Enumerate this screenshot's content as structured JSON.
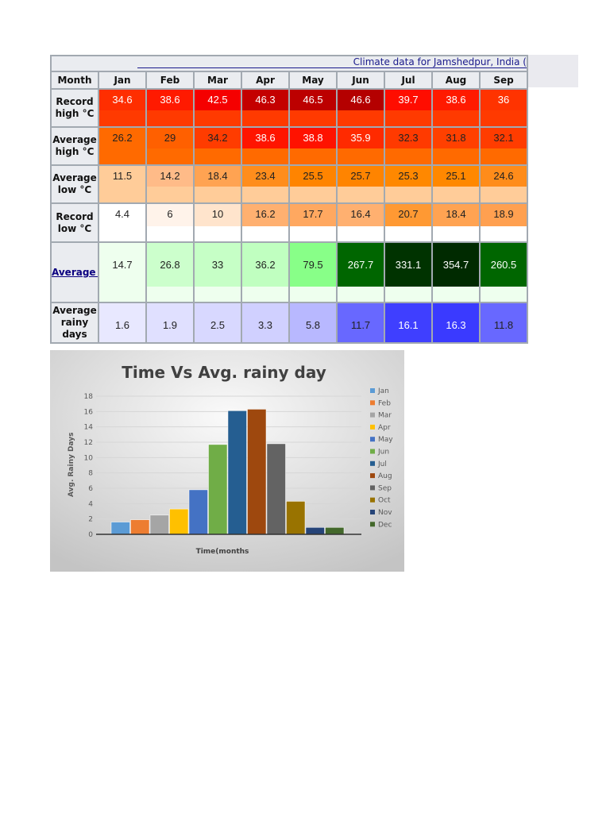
{
  "table": {
    "title": "Climate data for Jamshedpur, India (",
    "month_header": "Month",
    "months": [
      "Jan",
      "Feb",
      "Mar",
      "Apr",
      "May",
      "Jun",
      "Jul",
      "Aug",
      "Sep"
    ],
    "rows": [
      {
        "label": "Record high °C",
        "values": [
          "34.6",
          "38.6",
          "42.5",
          "46.3",
          "46.5",
          "46.6",
          "39.7",
          "38.6",
          "36"
        ],
        "colors": [
          "#ff2e00",
          "#ff1a00",
          "#f50000",
          "#c40000",
          "#bc0000",
          "#b40000",
          "#ff0d00",
          "#ff1a00",
          "#ff3300"
        ],
        "stripe": "#ff3a00",
        "height": 46,
        "stripe_h": 20
      },
      {
        "label": "Average high °C",
        "values": [
          "26.2",
          "29",
          "34.2",
          "38.6",
          "38.8",
          "35.9",
          "32.3",
          "31.8",
          "32.1"
        ],
        "colors": [
          "#ff6a00",
          "#ff6000",
          "#ff3c00",
          "#ff1500",
          "#ff1200",
          "#ff2a00",
          "#ff3a00",
          "#ff4000",
          "#ff3c00"
        ],
        "stripe": "#ff6a00",
        "height": 46,
        "stripe_h": 20
      },
      {
        "label": "Average low °C",
        "values": [
          "11.5",
          "14.2",
          "18.4",
          "23.4",
          "25.5",
          "25.7",
          "25.3",
          "25.1",
          "24.6"
        ],
        "colors": [
          "#ffcc99",
          "#ffbb88",
          "#ffa352",
          "#ff8d1c",
          "#ff8400",
          "#ff8400",
          "#ff8800",
          "#ff8800",
          "#ff8c1a"
        ],
        "stripe": "#ffcc99",
        "height": 46,
        "stripe_h": 20
      },
      {
        "label": "Record low °C",
        "values": [
          "4.4",
          "6",
          "10",
          "16.2",
          "17.7",
          "16.4",
          "20.7",
          "18.4",
          "18.9"
        ],
        "colors": [
          "#ffffff",
          "#fff3ea",
          "#ffe4cc",
          "#ffb070",
          "#ffa860",
          "#ffb070",
          "#ff9933",
          "#ffa352",
          "#ffa050"
        ],
        "stripe": "#ffffff",
        "height": 47,
        "stripe_h": 19
      },
      {
        "label": "Average p",
        "link": true,
        "values": [
          "14.7",
          "26.8",
          "33",
          "36.2",
          "79.5",
          "267.7",
          "331.1",
          "354.7",
          "260.5"
        ],
        "colors": [
          "#eeffee",
          "#ccffcc",
          "#c6ffc6",
          "#c0ffc0",
          "#88ff88",
          "#006600",
          "#003300",
          "#002a00",
          "#006600"
        ],
        "stripe": "#eeffee",
        "height": 74,
        "stripe_h": 19
      },
      {
        "label": "Average rainy days",
        "values": [
          "1.6",
          "1.9",
          "2.5",
          "3.3",
          "5.8",
          "11.7",
          "16.1",
          "16.3",
          "11.8"
        ],
        "colors": [
          "#e8e8ff",
          "#e0e0ff",
          "#d8d8ff",
          "#d0d0ff",
          "#b8b8ff",
          "#6868ff",
          "#3f3fff",
          "#3a3aff",
          "#6868ff"
        ],
        "stripe": null,
        "height": 49,
        "stripe_h": 0
      }
    ]
  },
  "chart_data": {
    "type": "bar",
    "title": "Time Vs Avg. rainy day",
    "xlabel": "Time(months",
    "ylabel": "Avg. Rainy Days",
    "ylim": [
      0,
      18
    ],
    "yticks": [
      0,
      2,
      4,
      6,
      8,
      10,
      12,
      14,
      16,
      18
    ],
    "grid": true,
    "legend": "right",
    "series": [
      {
        "name": "Jan",
        "value": 1.6,
        "color": "#5b9bd5"
      },
      {
        "name": "Feb",
        "value": 1.9,
        "color": "#ed7d31"
      },
      {
        "name": "Mar",
        "value": 2.5,
        "color": "#a5a5a5"
      },
      {
        "name": "Apr",
        "value": 3.3,
        "color": "#ffc000"
      },
      {
        "name": "May",
        "value": 5.8,
        "color": "#4472c4"
      },
      {
        "name": "Jun",
        "value": 11.7,
        "color": "#70ad47"
      },
      {
        "name": "Jul",
        "value": 16.1,
        "color": "#255e91"
      },
      {
        "name": "Aug",
        "value": 16.3,
        "color": "#9e480e"
      },
      {
        "name": "Sep",
        "value": 11.8,
        "color": "#636363"
      },
      {
        "name": "Oct",
        "value": 4.3,
        "color": "#997300"
      },
      {
        "name": "Nov",
        "value": 0.9,
        "color": "#264478"
      },
      {
        "name": "Dec",
        "value": 0.9,
        "color": "#43682b"
      }
    ]
  }
}
